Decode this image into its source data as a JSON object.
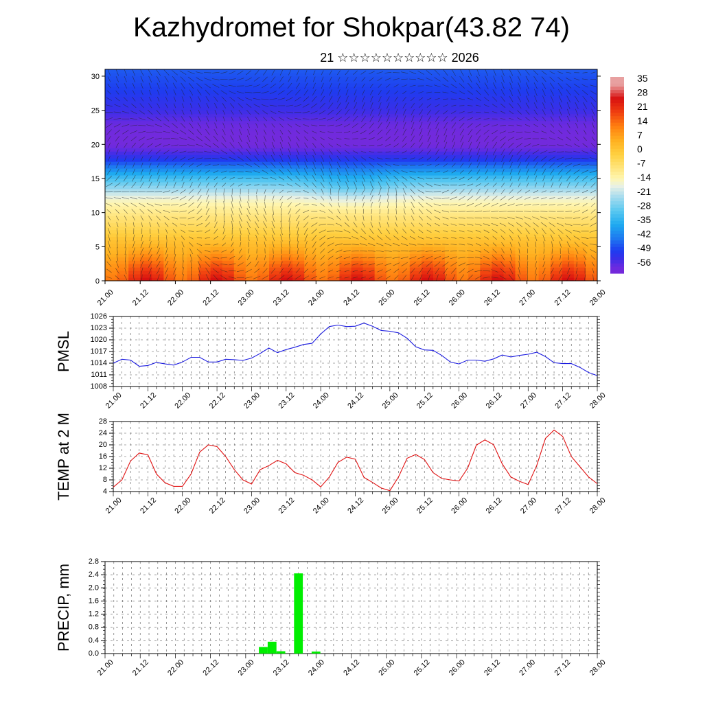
{
  "title": "Kazhydromet for Shokpar(43.82 74)",
  "subtitle": "21 ☆☆☆☆☆☆☆☆☆☆ 2026",
  "time_labels": [
    "21.00",
    "21.12",
    "22.00",
    "22.12",
    "23.00",
    "23.12",
    "24.00",
    "24.12",
    "25.00",
    "25.12",
    "26.00",
    "26.12",
    "27.00",
    "27.12",
    "28.00"
  ],
  "colors": {
    "pmsl_line": "#1a1adf",
    "temp_line": "#e01010",
    "precip_bar": "#00ee00"
  },
  "chart_data": [
    {
      "type": "heatmap",
      "name": "upper-air-cross-section",
      "title": "",
      "ylabel": "",
      "ylim": [
        0,
        31
      ],
      "yticks": [
        0,
        5,
        10,
        15,
        20,
        25,
        30
      ],
      "colorbar_labels": [
        "35",
        "28",
        "21",
        "14",
        "7",
        "0",
        "-7",
        "-14",
        "-21",
        "-28",
        "-35",
        "-42",
        "-49",
        "-56"
      ],
      "levels_km": [
        0,
        2,
        4,
        6,
        8,
        10,
        12,
        13.5,
        15,
        16.5,
        18,
        20,
        21.5,
        23,
        25,
        28,
        31
      ],
      "temperature_profile_C": [
        22,
        16,
        9,
        3,
        -3,
        -8,
        -14,
        -22,
        -30,
        -40,
        -50,
        -58,
        -58,
        -56,
        -52,
        -48,
        -45
      ],
      "wind_vectors": true
    },
    {
      "type": "line",
      "name": "PMSL",
      "ylabel": "PMSL",
      "ylim": [
        1008,
        1026
      ],
      "yticks": [
        1008,
        1011,
        1014,
        1017,
        1020,
        1023,
        1026
      ],
      "x": [
        0,
        3,
        6,
        9,
        12,
        15,
        18,
        21,
        24,
        27,
        30,
        33,
        36,
        39,
        42,
        45,
        48,
        51,
        54,
        57,
        60,
        63,
        66,
        69,
        72,
        75,
        78,
        81,
        84,
        87,
        90,
        93,
        96,
        99,
        102,
        105,
        108,
        111,
        114,
        117,
        120,
        123,
        126,
        129,
        132,
        135,
        138,
        141,
        144,
        147,
        150,
        153,
        156,
        159,
        162,
        165,
        168
      ],
      "values": [
        1014.0,
        1015.0,
        1014.8,
        1013.2,
        1013.4,
        1014.2,
        1013.8,
        1013.5,
        1014.3,
        1015.5,
        1015.5,
        1014.3,
        1014.3,
        1015.0,
        1014.9,
        1014.7,
        1015.3,
        1016.5,
        1017.9,
        1016.7,
        1017.5,
        1018.1,
        1018.8,
        1019.1,
        1021.5,
        1023.4,
        1023.8,
        1023.4,
        1023.5,
        1024.3,
        1023.5,
        1022.4,
        1022.2,
        1021.8,
        1020.4,
        1018.2,
        1017.4,
        1017.3,
        1016.0,
        1014.3,
        1013.8,
        1014.8,
        1014.8,
        1014.5,
        1015.1,
        1016.1,
        1015.6,
        1016.0,
        1016.3,
        1016.8,
        1015.7,
        1014.1,
        1013.9,
        1013.9,
        1012.9,
        1011.6,
        1010.8
      ],
      "series_color": "#1a1adf"
    },
    {
      "type": "line",
      "name": "TEMP at 2 M",
      "ylabel": "TEMP at 2 M",
      "ylim": [
        4,
        28
      ],
      "yticks": [
        4,
        8,
        12,
        16,
        20,
        24,
        28
      ],
      "x": [
        0,
        3,
        6,
        9,
        12,
        15,
        18,
        21,
        24,
        27,
        30,
        33,
        36,
        39,
        42,
        45,
        48,
        51,
        54,
        57,
        60,
        63,
        66,
        69,
        72,
        75,
        78,
        81,
        84,
        87,
        90,
        93,
        96,
        99,
        102,
        105,
        108,
        111,
        114,
        117,
        120,
        123,
        126,
        129,
        132,
        135,
        138,
        141,
        144,
        147,
        150,
        153,
        156,
        159,
        162,
        165,
        168
      ],
      "values": [
        5.5,
        8.0,
        14.5,
        17.2,
        16.6,
        10.0,
        7.0,
        5.8,
        5.8,
        10.0,
        17.5,
        20.0,
        19.4,
        16.0,
        11.5,
        8.0,
        6.6,
        11.5,
        12.9,
        14.7,
        13.5,
        10.5,
        9.6,
        8.0,
        5.6,
        9.0,
        14.0,
        15.8,
        15.1,
        8.9,
        7.1,
        5.2,
        4.3,
        9.0,
        15.4,
        16.7,
        15.0,
        10.5,
        8.5,
        8.0,
        7.6,
        12.0,
        19.9,
        21.7,
        20.1,
        13.5,
        9.0,
        7.5,
        6.4,
        13.0,
        22.2,
        25.1,
        22.9,
        16.0,
        12.5,
        9.0,
        6.7
      ],
      "series_color": "#e01010"
    },
    {
      "type": "bar",
      "name": "PRECIP, mm",
      "ylabel": "PRECIP, mm",
      "ylim": [
        0,
        2.8
      ],
      "yticks": [
        "0.0",
        "0.4",
        "0.8",
        "1.2",
        "1.6",
        "2.0",
        "2.4",
        "2.8"
      ],
      "x": [
        54,
        57,
        60,
        66,
        72
      ],
      "values": [
        0.2,
        0.36,
        0.07,
        2.44,
        0.06
      ],
      "series_color": "#00ee00"
    }
  ]
}
